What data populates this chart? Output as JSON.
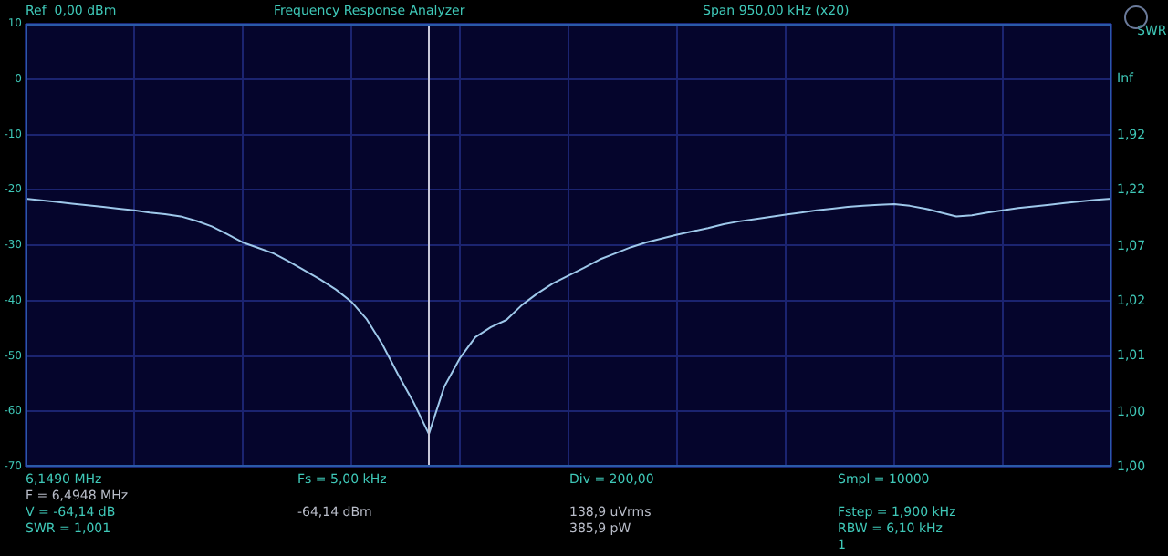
{
  "chart_data": {
    "type": "line",
    "title": "Frequency Response Analyzer",
    "y2label": "SWR",
    "annotations": [
      "Ref  0,00 dBm",
      "Span 950,00 kHz (x20)",
      "6,1490 MHz",
      "F = 6,4948 MHz",
      "V = -64,14 dB",
      "SWR = 1,001",
      "Fs = 5,00 kHz",
      "-64,14 dBm",
      "Div = 200,00",
      "138,9 uVrms",
      "385,9 pW",
      "Smpl = 10000",
      "Fstep = 1,900 kHz",
      "RBW = 6,10 kHz",
      "1",
      "Inf",
      "1,92",
      "1,22",
      "1,07",
      "1,02",
      "1,01",
      "1,00",
      "1,00"
    ],
    "categories": [
      null,
      null,
      null,
      null,
      null,
      null,
      null,
      null,
      null,
      null,
      null,
      null,
      null,
      null,
      null,
      null,
      null,
      null,
      null,
      null,
      null,
      null,
      null,
      null,
      null,
      null,
      null,
      null,
      null,
      null,
      null,
      null,
      null,
      null,
      null,
      null,
      null,
      null,
      null,
      null,
      null,
      null,
      null,
      null,
      null,
      null,
      null,
      null,
      null,
      null,
      null,
      null,
      null,
      null,
      null,
      null,
      null,
      null,
      null,
      null,
      null,
      null,
      null,
      null,
      null,
      null,
      null,
      null,
      null,
      null,
      null
    ],
    "color": "#9ec8ea",
    "values": [
      -21.6,
      -21.9,
      -22.2,
      -22.5,
      -22.8,
      -23.1,
      -23.4,
      -23.7,
      -24.1,
      -24.4,
      -24.8,
      -25.6,
      -26.6,
      -28.0,
      -29.5,
      -30.5,
      -31.5,
      -33.0,
      -34.6,
      -36.2,
      -38.0,
      -40.2,
      -43.4,
      -47.9,
      -53.3,
      -58.3,
      -64.1,
      -55.5,
      -50.4,
      -46.6,
      -44.8,
      -43.5,
      -40.8,
      -38.7,
      -36.9,
      -35.5,
      -34.1,
      -32.6,
      -31.5,
      -30.4,
      -29.5,
      -28.8,
      -28.1,
      -27.5,
      -26.9,
      -26.2,
      -25.7,
      -25.3,
      -24.9,
      -24.5,
      -24.1,
      -23.7,
      -23.4,
      -23.1,
      -22.9,
      -22.7,
      -22.6,
      -22.9,
      -23.4,
      -24.1,
      -24.8,
      -24.6,
      -24.1,
      -23.7,
      -23.3,
      -23.0,
      -22.7,
      -22.4,
      -22.1,
      -21.8,
      -21.6
    ],
    "ylim": [
      -70,
      10
    ],
    "yticks": [
      -70,
      -60,
      -50,
      -40,
      -30,
      -20,
      -10,
      0,
      10
    ],
    "grid": true,
    "legend": false,
    "marker": "none",
    "line_style": "solid"
  }
}
